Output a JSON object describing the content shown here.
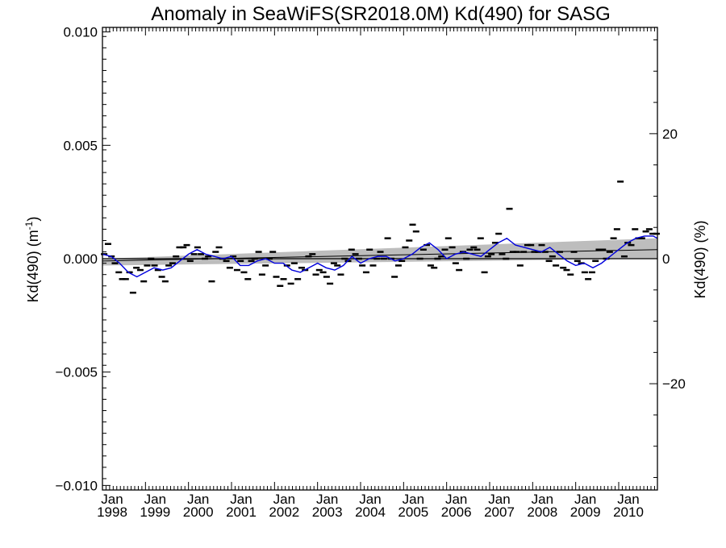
{
  "chart_data": {
    "type": "scatter",
    "title": "Anomaly in SeaWiFS(SR2018.0M) Kd(490) for SASG",
    "ylabel_left": "Kd(490) (m",
    "ylabel_left_sup": "-1",
    "ylabel_left_close": ")",
    "ylabel_right": "Kd(490) (%)",
    "xlabel": "",
    "xlim": [
      1998.0,
      2010.9
    ],
    "ylim": [
      -0.0102,
      0.0102
    ],
    "yticks": [
      {
        "value": 0.01,
        "label": "0.010"
      },
      {
        "value": 0.005,
        "label": "0.005"
      },
      {
        "value": 0.0,
        "label": "0.000"
      },
      {
        "value": -0.005,
        "label": "−0.005"
      },
      {
        "value": -0.01,
        "label": "−0.010"
      }
    ],
    "right_ylim": [
      -37,
      37
    ],
    "right_yticks": [
      {
        "value": 20,
        "label": "20"
      },
      {
        "value": 0,
        "label": "0"
      },
      {
        "value": -20,
        "label": "−20"
      }
    ],
    "xticks": [
      {
        "value": 1998,
        "month": "Jan",
        "year": "1998"
      },
      {
        "value": 1999,
        "month": "Jan",
        "year": "1999"
      },
      {
        "value": 2000,
        "month": "Jan",
        "year": "2000"
      },
      {
        "value": 2001,
        "month": "Jan",
        "year": "2001"
      },
      {
        "value": 2002,
        "month": "Jan",
        "year": "2002"
      },
      {
        "value": 2003,
        "month": "Jan",
        "year": "2003"
      },
      {
        "value": 2004,
        "month": "Jan",
        "year": "2004"
      },
      {
        "value": 2005,
        "month": "Jan",
        "year": "2005"
      },
      {
        "value": 2006,
        "month": "Jan",
        "year": "2006"
      },
      {
        "value": 2007,
        "month": "Jan",
        "year": "2007"
      },
      {
        "value": 2008,
        "month": "Jan",
        "year": "2008"
      },
      {
        "value": 2009,
        "month": "Jan",
        "year": "2009"
      },
      {
        "value": 2010,
        "month": "Jan",
        "year": "2010"
      }
    ],
    "grid": false,
    "zero_line": 0.0,
    "trend": {
      "x": [
        1998.0,
        2010.9
      ],
      "y": [
        -0.0001,
        0.0004
      ]
    },
    "trend_band": {
      "x": [
        1998.0,
        2010.9
      ],
      "upper": [
        0.0,
        0.0009
      ],
      "lower": [
        -0.0003,
        0.0
      ]
    },
    "series": [
      {
        "kind": "monthly_anomaly",
        "color": "#000000",
        "x": [
          1998.04,
          1998.13,
          1998.21,
          1998.29,
          1998.38,
          1998.46,
          1998.54,
          1998.63,
          1998.71,
          1998.79,
          1998.88,
          1998.96,
          1999.04,
          1999.13,
          1999.21,
          1999.29,
          1999.38,
          1999.46,
          1999.54,
          1999.63,
          1999.71,
          1999.79,
          1999.88,
          1999.96,
          2000.04,
          2000.13,
          2000.21,
          2000.29,
          2000.38,
          2000.46,
          2000.54,
          2000.63,
          2000.71,
          2000.79,
          2000.88,
          2000.96,
          2001.04,
          2001.13,
          2001.21,
          2001.29,
          2001.38,
          2001.46,
          2001.54,
          2001.63,
          2001.71,
          2001.79,
          2001.88,
          2001.96,
          2002.04,
          2002.13,
          2002.21,
          2002.29,
          2002.38,
          2002.46,
          2002.54,
          2002.63,
          2002.71,
          2002.79,
          2002.88,
          2002.96,
          2003.04,
          2003.13,
          2003.21,
          2003.29,
          2003.38,
          2003.46,
          2003.54,
          2003.63,
          2003.71,
          2003.79,
          2003.88,
          2003.96,
          2004.04,
          2004.13,
          2004.21,
          2004.29,
          2004.38,
          2004.46,
          2004.54,
          2004.63,
          2004.71,
          2004.79,
          2004.88,
          2004.96,
          2005.04,
          2005.13,
          2005.21,
          2005.29,
          2005.38,
          2005.46,
          2005.54,
          2005.63,
          2005.71,
          2005.79,
          2005.88,
          2005.96,
          2006.04,
          2006.13,
          2006.21,
          2006.29,
          2006.38,
          2006.46,
          2006.54,
          2006.63,
          2006.71,
          2006.79,
          2006.88,
          2006.96,
          2007.04,
          2007.13,
          2007.21,
          2007.29,
          2007.38,
          2007.46,
          2007.54,
          2007.63,
          2007.71,
          2007.79,
          2007.88,
          2007.96,
          2008.04,
          2008.13,
          2008.21,
          2008.29,
          2008.38,
          2008.46,
          2008.54,
          2008.63,
          2008.71,
          2008.79,
          2008.88,
          2008.96,
          2009.04,
          2009.13,
          2009.21,
          2009.29,
          2009.38,
          2009.46,
          2009.54,
          2009.63,
          2009.71,
          2009.79,
          2009.88,
          2009.96,
          2010.04,
          2010.13,
          2010.21,
          2010.29,
          2010.38,
          2010.46,
          2010.54,
          2010.63,
          2010.71,
          2010.79,
          2010.88
        ],
        "y": [
          0.0002,
          0.00065,
          0.0001,
          -0.0002,
          -0.0006,
          -0.0009,
          -0.0009,
          -0.0006,
          -0.0015,
          -0.0004,
          -0.0005,
          -0.001,
          -0.0003,
          0.0,
          -0.0003,
          -0.0005,
          -0.0008,
          -0.001,
          -0.0003,
          -0.0002,
          0.0001,
          0.0005,
          0.0005,
          0.0006,
          -0.0001,
          0.0002,
          0.0005,
          0.0002,
          0.0,
          0.0001,
          -0.001,
          0.0003,
          0.0005,
          0.0,
          -0.0001,
          -0.0004,
          0.0001,
          -0.0005,
          -0.0001,
          -0.0006,
          -0.0009,
          -0.0001,
          0.0,
          0.0003,
          -0.0007,
          -0.0003,
          0.0,
          0.0003,
          -0.0008,
          -0.0012,
          -0.0009,
          -0.0003,
          -0.0011,
          -0.0002,
          -0.0009,
          -0.0004,
          -0.0005,
          0.0001,
          0.0002,
          -0.0007,
          -0.0005,
          -0.0006,
          -0.0008,
          -0.0011,
          -0.0002,
          -0.0003,
          -0.0007,
          0.0,
          -0.0001,
          0.0004,
          0.0002,
          0.0,
          -0.0003,
          -0.0006,
          0.0004,
          -0.0003,
          0.0,
          0.0003,
          0.0,
          0.0009,
          0.0,
          -0.0008,
          -0.0003,
          -0.0001,
          0.0005,
          0.0008,
          0.0015,
          0.0012,
          0.0,
          0.0004,
          0.0006,
          -0.0003,
          -0.0004,
          0.0,
          0.0001,
          0.0004,
          0.0009,
          0.0005,
          -0.0002,
          -0.0005,
          0.0003,
          0.0,
          0.0004,
          0.0005,
          0.0004,
          0.0009,
          -0.0006,
          0.0001,
          0.0002,
          0.0007,
          0.0011,
          0.0002,
          0.0,
          0.0022,
          0.0003,
          0.0003,
          -0.0003,
          0.0003,
          0.0006,
          0.0006,
          0.0003,
          0.0003,
          0.0006,
          0.0003,
          -0.0001,
          0.0001,
          -0.0003,
          0.0003,
          -0.0004,
          -0.0005,
          -0.0007,
          0.0003,
          -0.0001,
          -0.0002,
          -0.0006,
          -0.0009,
          -0.0006,
          -0.0001,
          0.0004,
          0.0004,
          0.0,
          0.0003,
          0.0009,
          0.0013,
          0.0034,
          0.0001,
          0.0007,
          0.0006,
          0.0013,
          0.0009,
          0.0009,
          0.0012,
          0.0013,
          0.0011,
          0.0011
        ]
      },
      {
        "kind": "running_mean",
        "color": "#0000dd",
        "x": [
          1998.0,
          1998.2,
          1998.4,
          1998.6,
          1998.8,
          1999.0,
          1999.2,
          1999.4,
          1999.6,
          1999.8,
          2000.0,
          2000.2,
          2000.4,
          2000.6,
          2000.8,
          2001.0,
          2001.2,
          2001.4,
          2001.6,
          2001.8,
          2002.0,
          2002.2,
          2002.4,
          2002.6,
          2002.8,
          2003.0,
          2003.2,
          2003.4,
          2003.6,
          2003.8,
          2004.0,
          2004.2,
          2004.4,
          2004.6,
          2004.8,
          2005.0,
          2005.2,
          2005.4,
          2005.6,
          2005.8,
          2006.0,
          2006.2,
          2006.4,
          2006.6,
          2006.8,
          2007.0,
          2007.2,
          2007.4,
          2007.6,
          2007.8,
          2008.0,
          2008.2,
          2008.4,
          2008.6,
          2008.8,
          2009.0,
          2009.2,
          2009.4,
          2009.6,
          2009.8,
          2010.0,
          2010.2,
          2010.4,
          2010.6,
          2010.8,
          2010.9
        ],
        "y": [
          0.0002,
          0.0001,
          -0.0002,
          -0.0006,
          -0.0008,
          -0.0006,
          -0.0004,
          -0.0005,
          -0.0004,
          -0.0001,
          0.0002,
          0.0004,
          0.0002,
          0.0001,
          0.0,
          0.0001,
          -0.0003,
          -0.0003,
          -0.0001,
          0.0,
          -0.0002,
          -0.0002,
          -0.0005,
          -0.0006,
          -0.0004,
          -0.0002,
          -0.0004,
          -0.0005,
          -0.0003,
          0.0001,
          -0.0002,
          0.0,
          0.0001,
          0.0001,
          -0.0001,
          0.0,
          0.0002,
          0.0005,
          0.0007,
          0.0004,
          0.0,
          0.0002,
          0.0003,
          0.0002,
          0.0001,
          0.0004,
          0.0007,
          0.0009,
          0.0006,
          0.0005,
          0.0004,
          0.0003,
          0.0005,
          0.0002,
          -0.0001,
          -0.0003,
          -0.0002,
          -0.0004,
          -0.0002,
          0.0001,
          0.0004,
          0.0007,
          0.0009,
          0.001,
          0.001,
          0.0009
        ]
      }
    ]
  }
}
